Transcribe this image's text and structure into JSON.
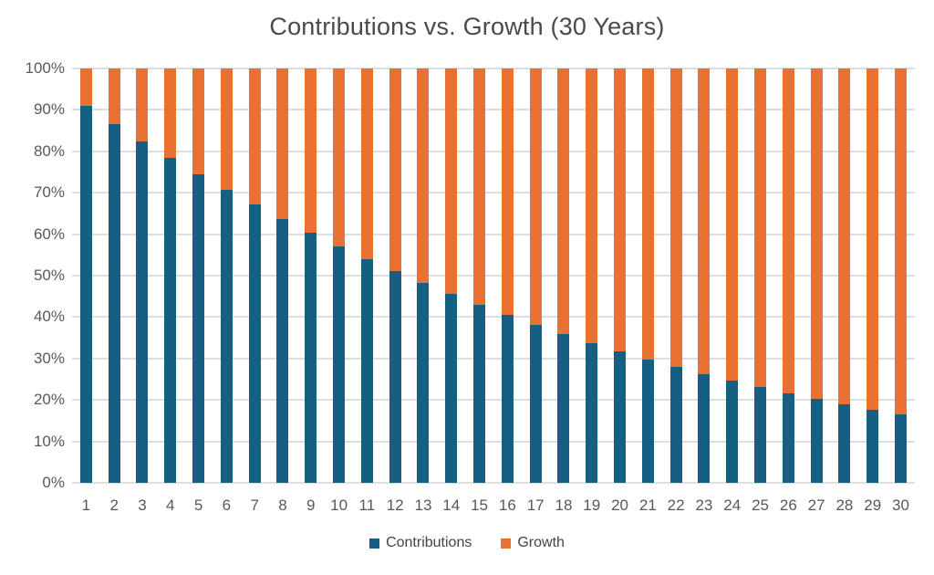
{
  "chart_data": {
    "type": "bar",
    "variant": "stacked-100-percent",
    "title": "Contributions vs. Growth (30 Years)",
    "xlabel": "",
    "ylabel": "",
    "categories": [
      "1",
      "2",
      "3",
      "4",
      "5",
      "6",
      "7",
      "8",
      "9",
      "10",
      "11",
      "12",
      "13",
      "14",
      "15",
      "16",
      "17",
      "18",
      "19",
      "20",
      "21",
      "22",
      "23",
      "24",
      "25",
      "26",
      "27",
      "28",
      "29",
      "30"
    ],
    "series": [
      {
        "name": "Contributions",
        "color": "#156082",
        "values": [
          90.9,
          86.6,
          82.4,
          78.4,
          74.5,
          70.7,
          67.1,
          63.6,
          60.3,
          57.0,
          54.0,
          51.0,
          48.2,
          45.5,
          42.9,
          40.5,
          38.1,
          35.9,
          33.8,
          31.7,
          29.8,
          28.0,
          26.3,
          24.7,
          23.1,
          21.6,
          20.3,
          19.0,
          17.7,
          16.6
        ]
      },
      {
        "name": "Growth",
        "color": "#E97132",
        "values": [
          9.1,
          13.4,
          17.6,
          21.6,
          25.5,
          29.3,
          32.9,
          36.4,
          39.7,
          43.0,
          46.0,
          49.0,
          51.8,
          54.5,
          57.1,
          59.5,
          61.9,
          64.1,
          66.2,
          68.3,
          70.2,
          72.0,
          73.7,
          75.3,
          76.9,
          78.4,
          79.7,
          81.0,
          82.3,
          83.4
        ]
      }
    ],
    "y_axis": {
      "min": 0,
      "max": 100,
      "tick_step": 10,
      "ticks": [
        "0%",
        "10%",
        "20%",
        "30%",
        "40%",
        "50%",
        "60%",
        "70%",
        "80%",
        "90%",
        "100%"
      ],
      "grid": true
    },
    "legend_position": "bottom",
    "colors": {
      "gridline": "#DEDEDE",
      "axis_text": "#595959",
      "title_text": "#4A4A4A",
      "background": "#FFFFFF"
    }
  }
}
